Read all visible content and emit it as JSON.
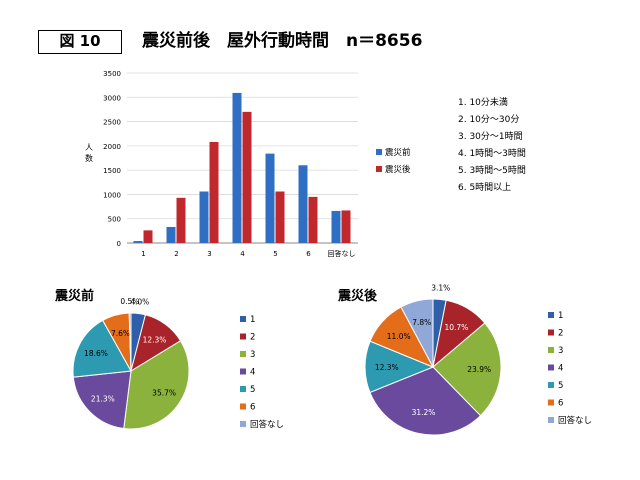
{
  "header": {
    "figure_label": "図 10",
    "title": "震災前後　屋外行動時間　n＝8656"
  },
  "category_legend": [
    "1. 10分未満",
    "2. 10分～30分",
    "3. 30分～1時間",
    "4. 1時間～3時間",
    "5. 3時間～5時間",
    "6. 5時間以上"
  ],
  "colors": {
    "before": "#2e6fc4",
    "after": "#c0282d",
    "pie": [
      "#2e5fa8",
      "#a8232a",
      "#8ab23c",
      "#6a4a9c",
      "#2e9ab2",
      "#e46d1a",
      "#8fa8d8"
    ]
  },
  "chart_data": [
    {
      "type": "bar",
      "ylabel": "人数",
      "ylim": [
        0,
        3500
      ],
      "yticks": [
        "0",
        "500",
        "1000",
        "1500",
        "2000",
        "2500",
        "3000",
        "3500"
      ],
      "grid": true,
      "legend_position": "right",
      "categories": [
        "1",
        "2",
        "3",
        "4",
        "5",
        "6",
        "回答なし"
      ],
      "series": [
        {
          "name": "震災前",
          "values": [
            40,
            330,
            1060,
            3090,
            1840,
            1600,
            660
          ]
        },
        {
          "name": "震災後",
          "values": [
            260,
            930,
            2080,
            2700,
            1060,
            950,
            670
          ]
        }
      ]
    },
    {
      "type": "pie",
      "title": "震災前",
      "labels": [
        "1",
        "2",
        "3",
        "4",
        "5",
        "6",
        "回答なし"
      ],
      "values": [
        4.0,
        12.3,
        35.7,
        21.3,
        18.6,
        7.6,
        0.5
      ],
      "value_labels": [
        "4.0%",
        "12.3%",
        "35.7%",
        "21.3%",
        "18.6%",
        "7.6%",
        "0.5%"
      ],
      "legend_position": "right"
    },
    {
      "type": "pie",
      "title": "震災後",
      "labels": [
        "1",
        "2",
        "3",
        "4",
        "5",
        "6",
        "回答なし"
      ],
      "values": [
        3.1,
        10.7,
        23.9,
        31.2,
        12.3,
        11.0,
        7.8
      ],
      "value_labels": [
        "3.1%",
        "10.7%",
        "23.9%",
        "31.2%",
        "12.3%",
        "11.0%",
        "7.8%"
      ],
      "legend_position": "right"
    }
  ]
}
